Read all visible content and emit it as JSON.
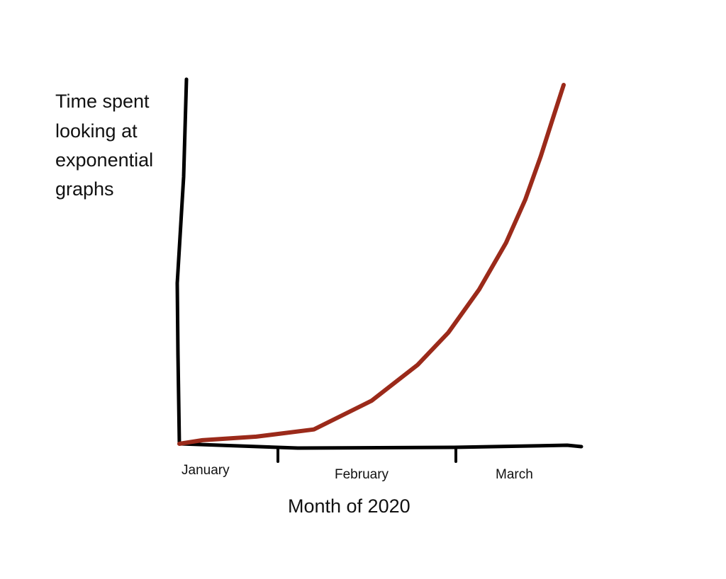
{
  "chart_data": {
    "type": "line",
    "title": "",
    "ylabel_lines": [
      "Time spent",
      "looking at",
      "exponential",
      "graphs"
    ],
    "xlabel": "Month of 2020",
    "categories": [
      "January",
      "February",
      "March"
    ],
    "y_tick_labels": [],
    "grid": false,
    "legend": "none",
    "x": [
      0,
      0.06,
      0.2,
      0.35,
      0.5,
      0.62,
      0.7,
      0.78,
      0.85,
      0.9,
      0.94,
      0.97,
      1.0
    ],
    "series": [
      {
        "values": [
          0,
          0.01,
          0.02,
          0.04,
          0.12,
          0.22,
          0.31,
          0.43,
          0.56,
          0.68,
          0.8,
          0.9,
          1.0
        ],
        "color": "#9b2a1a"
      }
    ],
    "colors": {
      "axis": "#000000",
      "curve": "#9b2a1a"
    }
  }
}
